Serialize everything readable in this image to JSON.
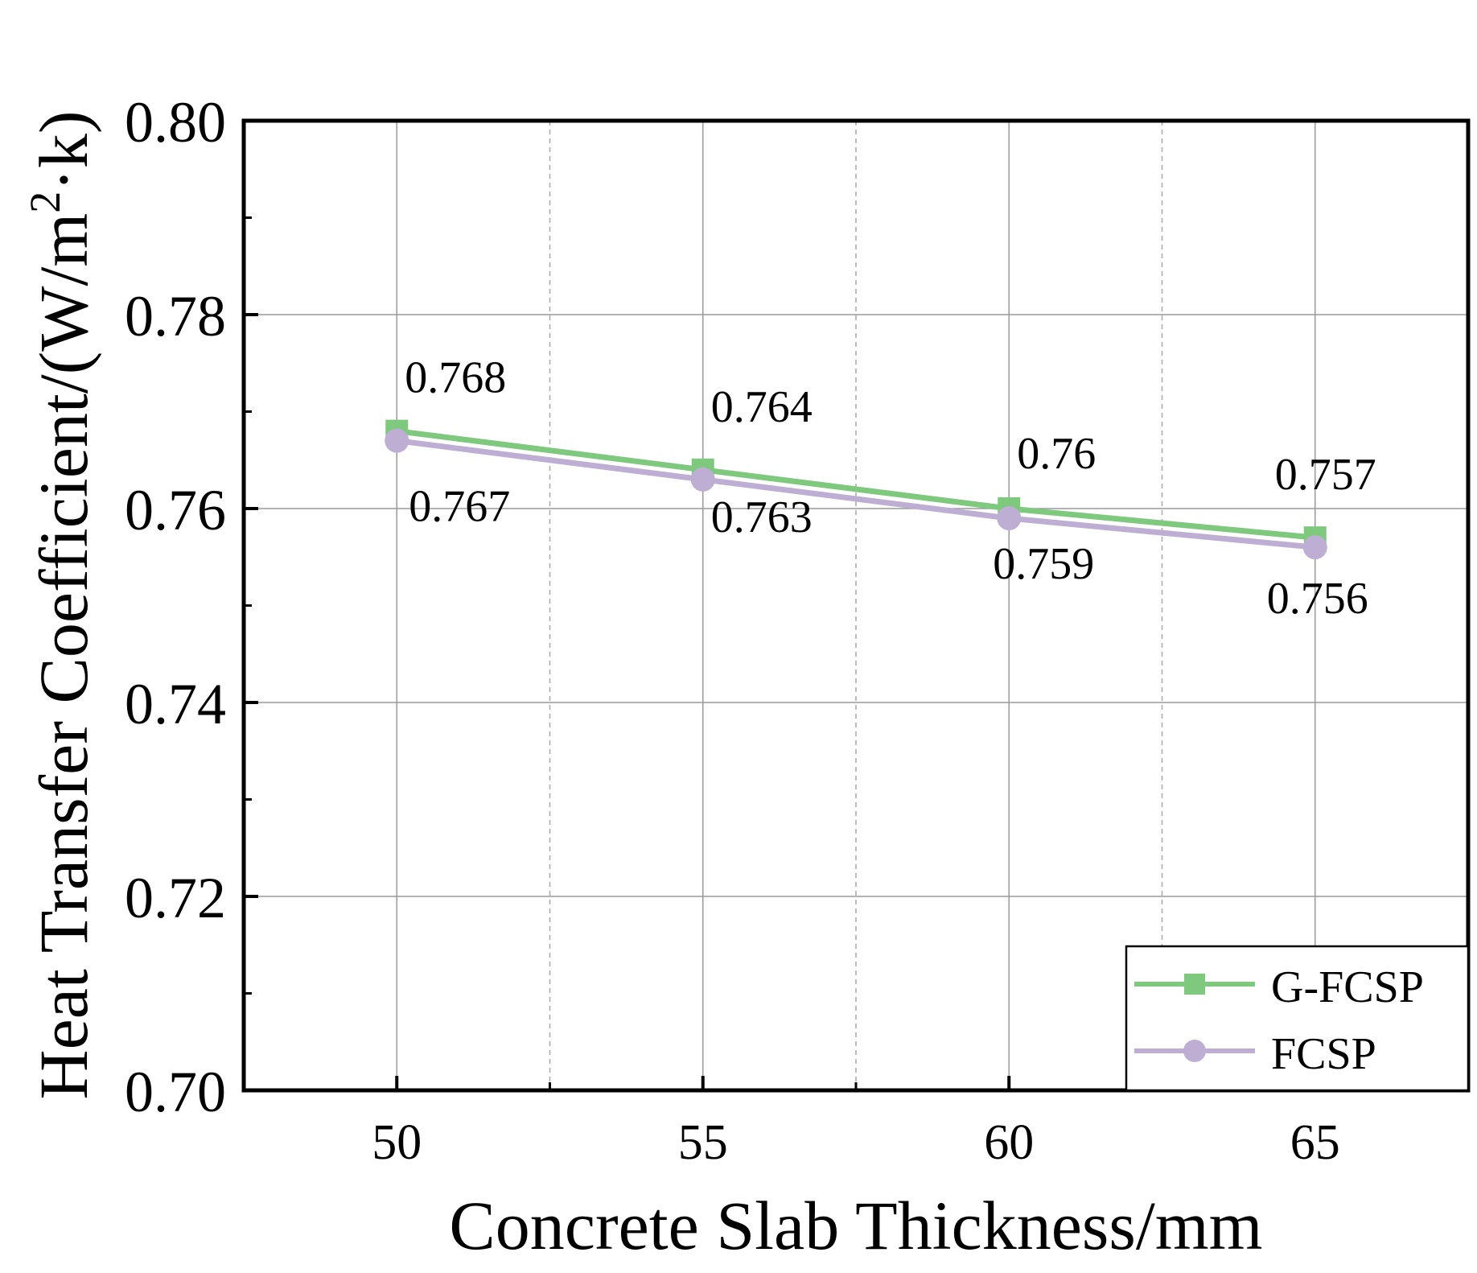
{
  "chart_data": {
    "type": "line",
    "x": [
      50,
      55,
      60,
      65
    ],
    "series": [
      {
        "name": "G-FCSP",
        "marker": "square",
        "color": "#7fc97f",
        "values": [
          0.768,
          0.764,
          0.76,
          0.757
        ],
        "labels": [
          "0.768",
          "0.764",
          "0.76",
          "0.757"
        ]
      },
      {
        "name": "FCSP",
        "marker": "circle",
        "color": "#beaed4",
        "values": [
          0.767,
          0.763,
          0.759,
          0.756
        ],
        "labels": [
          "0.767",
          "0.763",
          "0.759",
          "0.756"
        ]
      }
    ],
    "xlabel": "Concrete Slab Thickness/mm",
    "ylabel_main": "Heat Transfer Coefficient/(W/m",
    "ylabel_sup": "2",
    "ylabel_tail": "·k)",
    "xlim": [
      47.5,
      67.5
    ],
    "ylim": [
      0.7,
      0.8
    ],
    "xticks": [
      "50",
      "55",
      "60",
      "65"
    ],
    "yticks": [
      "0.70",
      "0.72",
      "0.74",
      "0.76",
      "0.78",
      "0.80"
    ],
    "grid": true,
    "legend_position": "bottom-right"
  }
}
